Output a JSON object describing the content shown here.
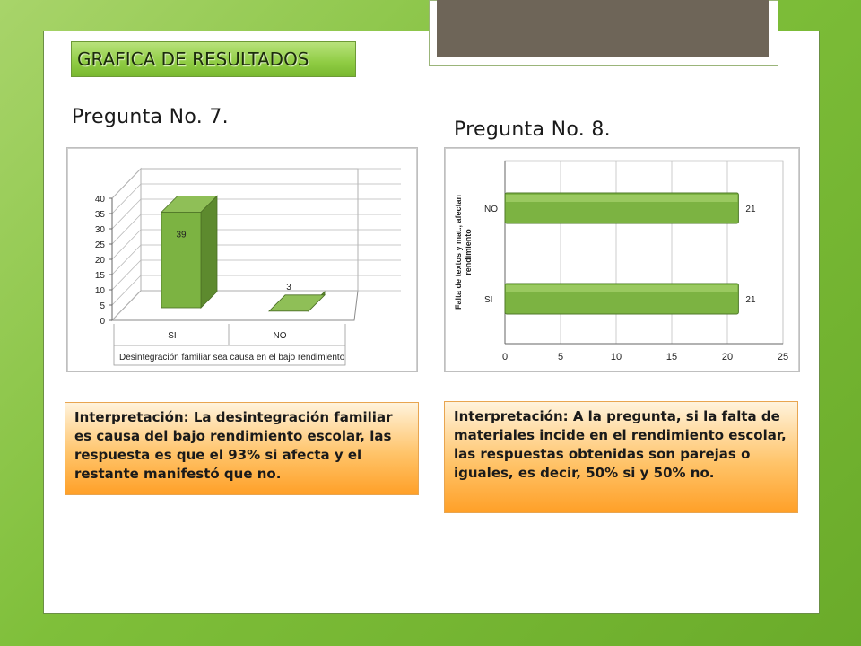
{
  "header": {
    "title": "GRAFICA DE RESULTADOS"
  },
  "questions": [
    {
      "title": "Pregunta No. 7."
    },
    {
      "title": "Pregunta No. 8."
    }
  ],
  "chart_data": [
    {
      "type": "bar",
      "orientation": "vertical",
      "style": "3d",
      "categories": [
        "SI",
        "NO"
      ],
      "values": [
        39,
        3
      ],
      "data_labels": [
        "39",
        "3"
      ],
      "xlabel": "Desintegración familiar sea causa en el bajo rendimiento",
      "ylabel": "",
      "ylim": [
        0,
        40
      ],
      "yticks": [
        "0",
        "5",
        "10",
        "15",
        "20",
        "25",
        "30",
        "35",
        "40"
      ],
      "grid": true,
      "legend": "none",
      "color": "#7cb342"
    },
    {
      "type": "bar",
      "orientation": "horizontal",
      "categories": [
        "NO",
        "SI"
      ],
      "values": [
        21,
        21
      ],
      "data_labels": [
        "21",
        "21"
      ],
      "ylabel": "Falta de textos y mat., afectan rendimiento",
      "xlabel": "",
      "xlim": [
        0,
        25
      ],
      "xticks": [
        "0",
        "5",
        "10",
        "15",
        "20",
        "25"
      ],
      "grid": true,
      "legend": "none",
      "color": "#7cb342"
    }
  ],
  "interpretations": [
    {
      "text": "Interpretación: La desintegración familiar es causa del bajo rendimiento escolar, las respuesta es que el 93% si afecta y el restante manifestó que no."
    },
    {
      "text": "Interpretación: A la pregunta, si la falta de materiales incide en el rendimiento escolar, las respuestas obtenidas son parejas o iguales, es decir, 50% si y 50% no."
    }
  ]
}
